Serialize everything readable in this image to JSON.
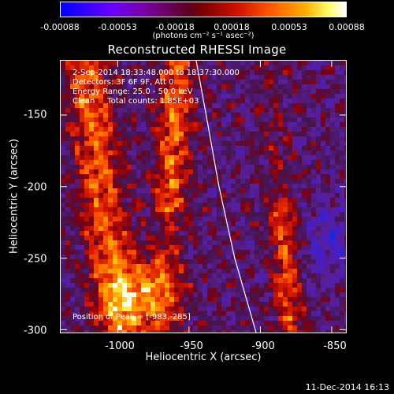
{
  "colorbar": {
    "ticks": [
      "-0.00088",
      "-0.00053",
      "-0.00018",
      "0.00018",
      "0.00053",
      "0.00088"
    ],
    "unit_label": "(photons cm⁻² s⁻¹ asec⁻²)"
  },
  "title": "Reconstructed RHESSI Image",
  "annotations": {
    "time_range": "2-Sep-2014 18:33:48.000 to 18:37:30.000",
    "detectors": "Detectors: 3F 6F 9F, Att 0",
    "energy_range": "Energy Range: 25.0 - 50.0 keV",
    "clean_counts": "Clean     Total counts: 1.85E+03",
    "peak_position": "Position of Peak = [-983,-285]"
  },
  "axes": {
    "xlabel": "Heliocentric X (arcsec)",
    "ylabel": "Heliocentric Y (arcsec)",
    "xticks": [
      "-1000",
      "-950",
      "-900",
      "-850"
    ],
    "yticks": [
      "-150",
      "-200",
      "-250",
      "-300"
    ],
    "xlim": [
      -1040,
      -840
    ],
    "ylim": [
      -302,
      -112
    ],
    "xtick_values": [
      -1000,
      -950,
      -900,
      -850
    ],
    "ytick_values": [
      -150,
      -200,
      -250,
      -300
    ]
  },
  "limb_curve": {
    "description_none": "",
    "points": [
      [
        -945,
        -112
      ],
      [
        -938,
        -150
      ],
      [
        -929,
        -200
      ],
      [
        -918,
        -250
      ],
      [
        -903,
        -302
      ]
    ]
  },
  "peak": {
    "x": -983,
    "y": -285
  },
  "footer_date": "11-Dec-2014 16:13"
}
